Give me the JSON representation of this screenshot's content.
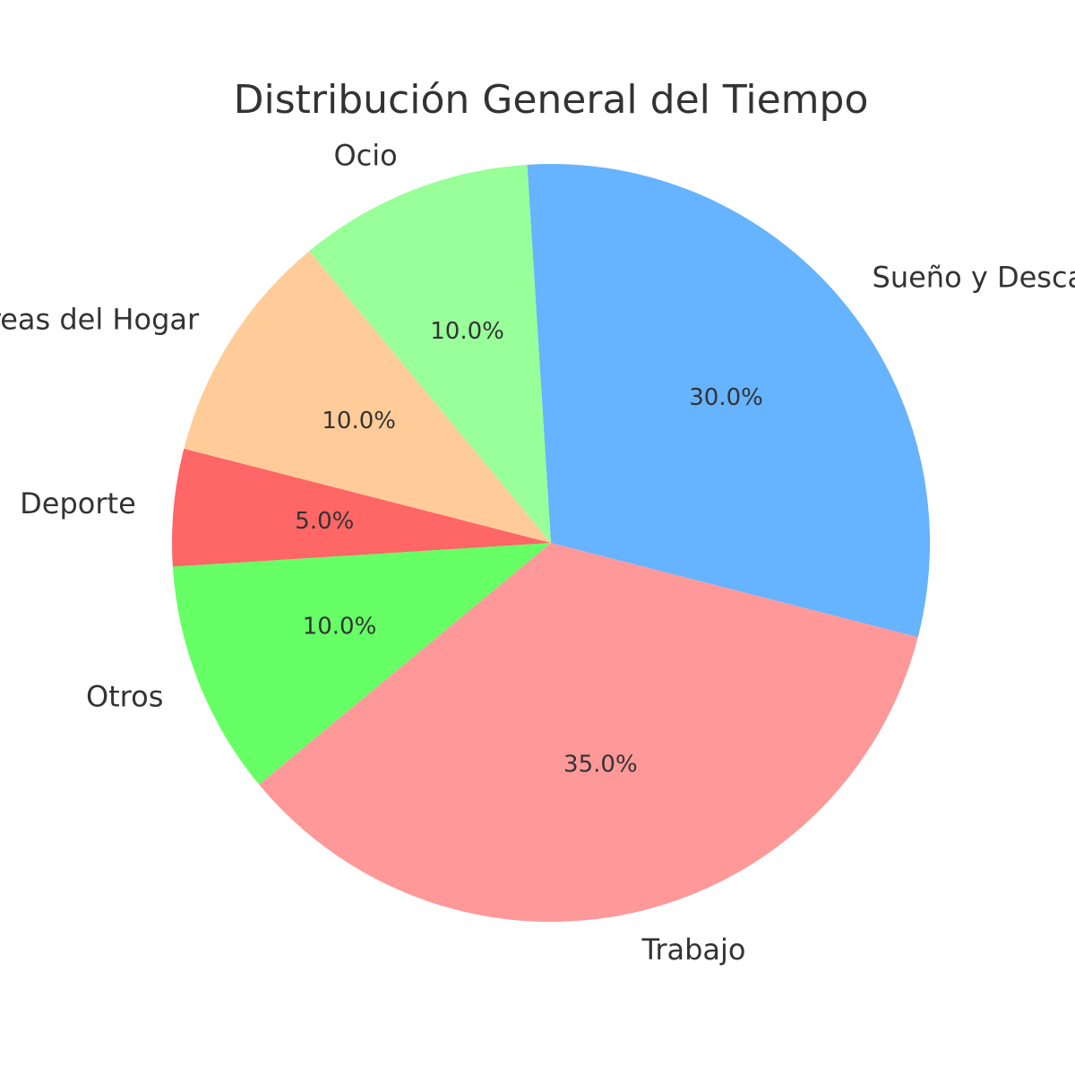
{
  "chart_data": {
    "type": "pie",
    "title": "Distribución General del Tiempo",
    "start_angle_deg": 93.6,
    "direction": "clockwise",
    "legend": "none",
    "slices": [
      {
        "label": "Sueño y Descanso",
        "value": 30.0,
        "pct_label": "30.0%",
        "color": "#66b3ff"
      },
      {
        "label": "Trabajo",
        "value": 35.0,
        "pct_label": "35.0%",
        "color": "#ff9999"
      },
      {
        "label": "Otros",
        "value": 10.0,
        "pct_label": "10.0%",
        "color": "#66ff66"
      },
      {
        "label": "Deporte",
        "value": 5.0,
        "pct_label": "5.0%",
        "color": "#ff6666"
      },
      {
        "label": "Tareas del Hogar",
        "value": 10.0,
        "pct_label": "10.0%",
        "color": "#ffcc99"
      },
      {
        "label": "Ocio",
        "value": 10.0,
        "pct_label": "10.0%",
        "color": "#99ff99"
      }
    ]
  }
}
